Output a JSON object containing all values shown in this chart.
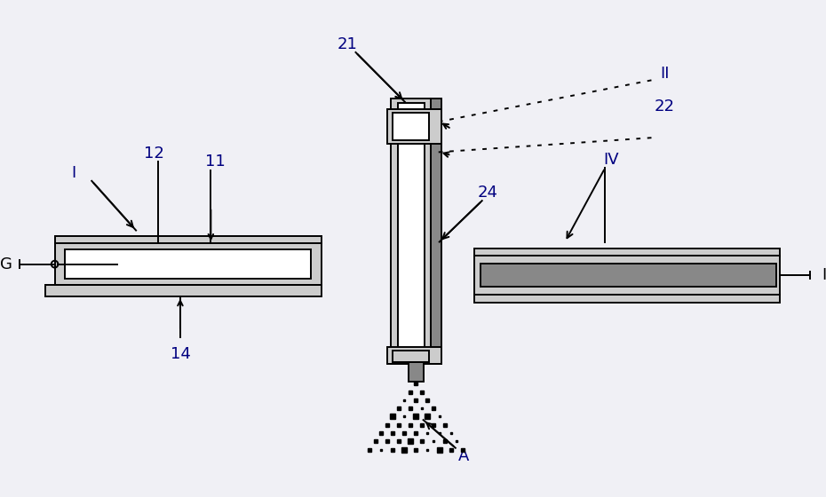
{
  "bg_color": "#f0f0f5",
  "lc": "#000000",
  "fill_light": "#cccccc",
  "fill_white": "#ffffff",
  "fill_mid": "#888888",
  "fill_dark": "#444444",
  "blue": "#000080",
  "labels": {
    "G": "G",
    "I_right": "I",
    "I_region": "I",
    "12": "12",
    "11": "11",
    "14": "14",
    "21": "21",
    "22": "22",
    "24": "24",
    "II": "II",
    "IV": "IV",
    "A": "A"
  },
  "figw": 9.3,
  "figh": 5.6
}
